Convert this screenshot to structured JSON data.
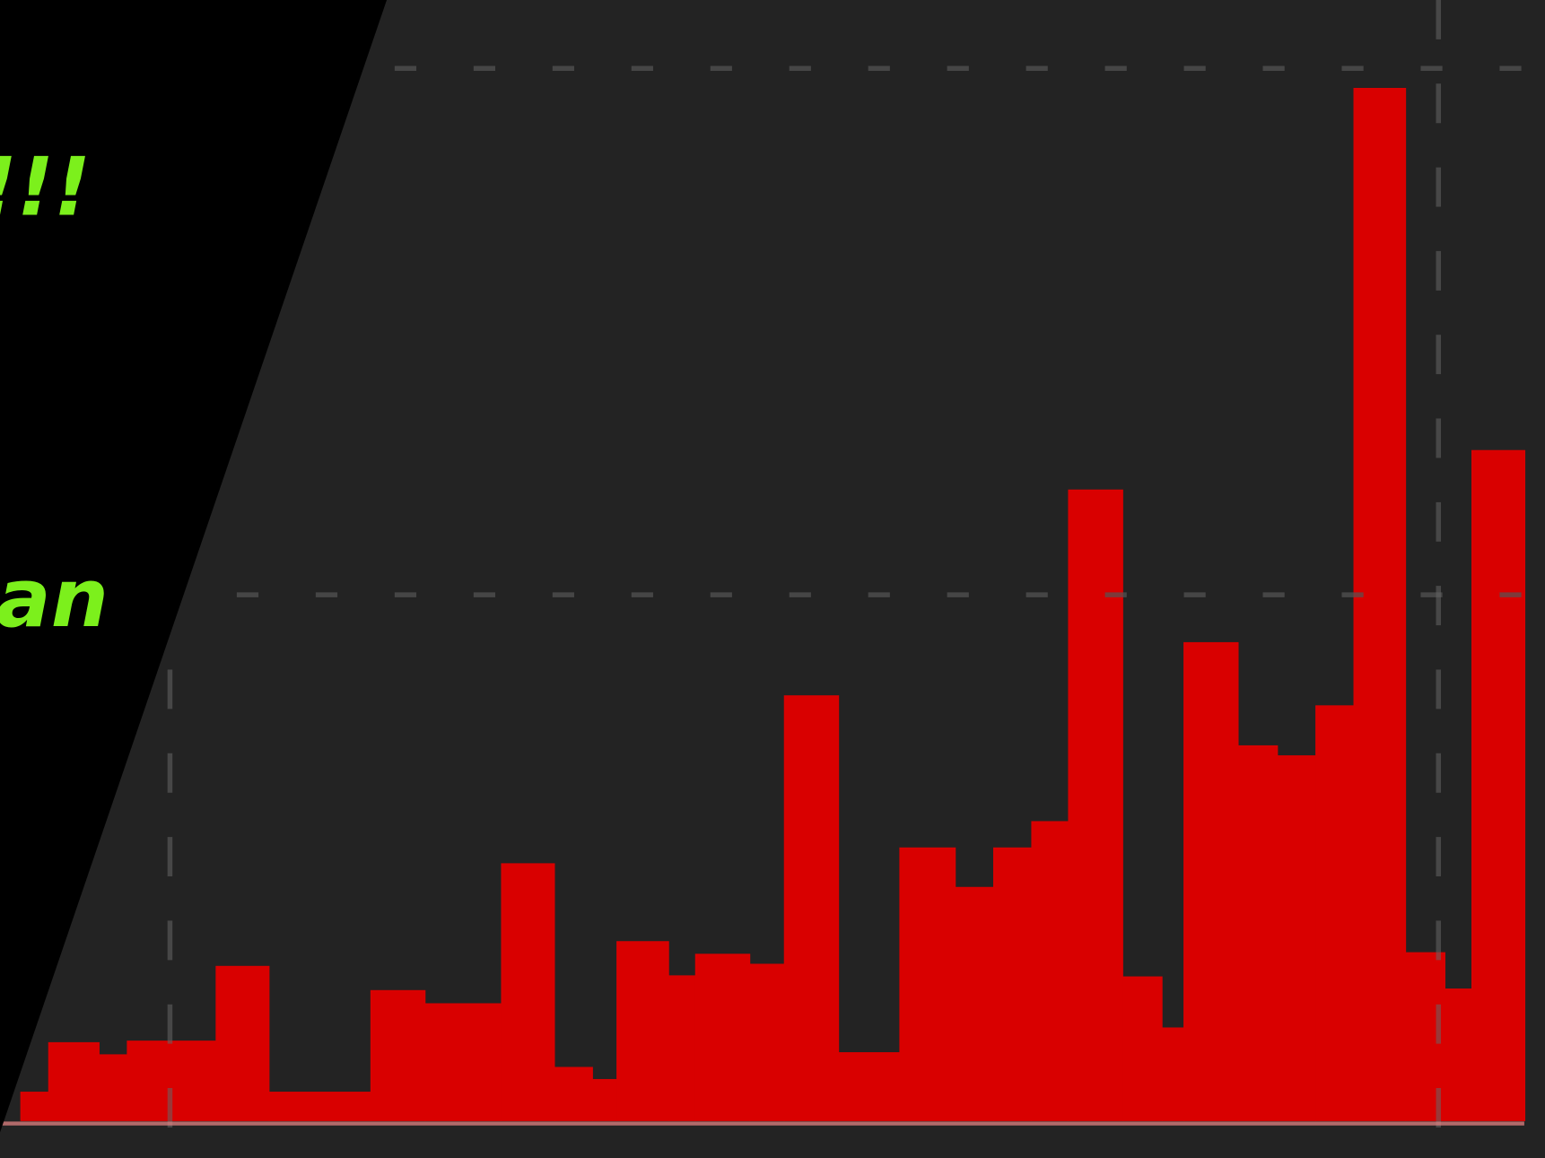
{
  "chart_data": {
    "type": "histogram",
    "color": "#d90000",
    "grid": true,
    "bins": [
      -11.8,
      -9.6,
      -5.6,
      -3.4,
      3.6,
      7.8,
      15.8,
      20.1,
      26.1,
      30.3,
      33.3,
      35.2,
      39.3,
      41.4,
      45.7,
      48.4,
      52.7,
      57.5,
      61.9,
      64.9,
      67.9,
      70.8,
      75.1,
      78.2,
      79.9,
      84.2,
      87.3,
      90.3,
      93.3,
      97.4,
      100.5,
      102.6,
      106.8
    ],
    "values": [
      0.056,
      0.15,
      0.127,
      0.153,
      0.295,
      0.056,
      0.249,
      0.224,
      0.49,
      0.103,
      0.08,
      0.342,
      0.277,
      0.318,
      0.299,
      0.809,
      0.131,
      0.52,
      0.445,
      0.52,
      0.57,
      1.2,
      0.275,
      0.178,
      0.91,
      0.714,
      0.695,
      0.79,
      1.963,
      0.321,
      0.252,
      1.275
    ],
    "xlim": [
      -13.4,
      108.4
    ],
    "xticks": [
      0,
      100
    ],
    "ylim": [
      -0.07,
      2.13
    ],
    "yticks": [
      1,
      2
    ]
  },
  "overlay": {
    "lines": [
      "s!!!",
      "'",
      "ian"
    ]
  }
}
